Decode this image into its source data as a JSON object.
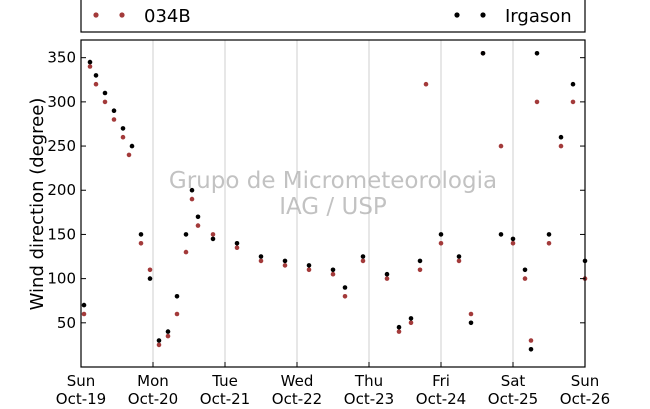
{
  "chart_data": {
    "type": "scatter",
    "title": "",
    "xlabel": "",
    "ylabel": "Wind direction (degree)",
    "ylim": [
      0,
      370
    ],
    "yticks": [
      50,
      100,
      150,
      200,
      250,
      300,
      350
    ],
    "xlim": [
      "2014-10-19",
      "2014-10-26"
    ],
    "xticks": [
      {
        "day": "Sun",
        "date": "Oct-19"
      },
      {
        "day": "Mon",
        "date": "Oct-20"
      },
      {
        "day": "Tue",
        "date": "Oct-21"
      },
      {
        "day": "Wed",
        "date": "Oct-22"
      },
      {
        "day": "Thu",
        "date": "Oct-23"
      },
      {
        "day": "Fri",
        "date": "Oct-24"
      },
      {
        "day": "Sat",
        "date": "Oct-25"
      },
      {
        "day": "Sun",
        "date": "Oct-26"
      }
    ],
    "grid": "vertical",
    "legend_position": "top",
    "watermark": [
      "Grupo de Micrometeorologia",
      "IAG / USP"
    ],
    "series": [
      {
        "name": "034B",
        "color": "#a33a3a",
        "values": [
          [
            "2014-10-19 01:00",
            60
          ],
          [
            "2014-10-19 03:00",
            340
          ],
          [
            "2014-10-19 05:00",
            320
          ],
          [
            "2014-10-19 08:00",
            300
          ],
          [
            "2014-10-19 11:00",
            280
          ],
          [
            "2014-10-19 14:00",
            260
          ],
          [
            "2014-10-19 16:00",
            240
          ],
          [
            "2014-10-19 20:00",
            140
          ],
          [
            "2014-10-19 23:00",
            110
          ],
          [
            "2014-10-20 02:00",
            25
          ],
          [
            "2014-10-20 05:00",
            35
          ],
          [
            "2014-10-20 08:00",
            60
          ],
          [
            "2014-10-20 11:00",
            130
          ],
          [
            "2014-10-20 13:00",
            190
          ],
          [
            "2014-10-20 15:00",
            160
          ],
          [
            "2014-10-20 20:00",
            150
          ],
          [
            "2014-10-21 04:00",
            135
          ],
          [
            "2014-10-21 12:00",
            120
          ],
          [
            "2014-10-21 20:00",
            115
          ],
          [
            "2014-10-22 04:00",
            110
          ],
          [
            "2014-10-22 12:00",
            105
          ],
          [
            "2014-10-22 16:00",
            80
          ],
          [
            "2014-10-22 22:00",
            120
          ],
          [
            "2014-10-23 06:00",
            100
          ],
          [
            "2014-10-23 10:00",
            40
          ],
          [
            "2014-10-23 14:00",
            50
          ],
          [
            "2014-10-23 17:00",
            110
          ],
          [
            "2014-10-23 19:00",
            320
          ],
          [
            "2014-10-24 00:00",
            140
          ],
          [
            "2014-10-24 06:00",
            120
          ],
          [
            "2014-10-24 10:00",
            60
          ],
          [
            "2014-10-24 14:00",
            355
          ],
          [
            "2014-10-24 20:00",
            250
          ],
          [
            "2014-10-25 00:00",
            140
          ],
          [
            "2014-10-25 04:00",
            100
          ],
          [
            "2014-10-25 06:00",
            30
          ],
          [
            "2014-10-25 08:00",
            300
          ],
          [
            "2014-10-25 12:00",
            140
          ],
          [
            "2014-10-25 16:00",
            250
          ],
          [
            "2014-10-25 20:00",
            300
          ],
          [
            "2014-10-26 00:00",
            100
          ]
        ]
      },
      {
        "name": "Irgason",
        "color": "#000000",
        "values": [
          [
            "2014-10-19 01:00",
            70
          ],
          [
            "2014-10-19 03:00",
            345
          ],
          [
            "2014-10-19 05:00",
            330
          ],
          [
            "2014-10-19 08:00",
            310
          ],
          [
            "2014-10-19 11:00",
            290
          ],
          [
            "2014-10-19 14:00",
            270
          ],
          [
            "2014-10-19 17:00",
            250
          ],
          [
            "2014-10-19 20:00",
            150
          ],
          [
            "2014-10-19 23:00",
            100
          ],
          [
            "2014-10-20 02:00",
            30
          ],
          [
            "2014-10-20 05:00",
            40
          ],
          [
            "2014-10-20 08:00",
            80
          ],
          [
            "2014-10-20 11:00",
            150
          ],
          [
            "2014-10-20 13:00",
            200
          ],
          [
            "2014-10-20 15:00",
            170
          ],
          [
            "2014-10-20 20:00",
            145
          ],
          [
            "2014-10-21 04:00",
            140
          ],
          [
            "2014-10-21 12:00",
            125
          ],
          [
            "2014-10-21 20:00",
            120
          ],
          [
            "2014-10-22 04:00",
            115
          ],
          [
            "2014-10-22 12:00",
            110
          ],
          [
            "2014-10-22 16:00",
            90
          ],
          [
            "2014-10-22 22:00",
            125
          ],
          [
            "2014-10-23 06:00",
            105
          ],
          [
            "2014-10-23 10:00",
            45
          ],
          [
            "2014-10-23 14:00",
            55
          ],
          [
            "2014-10-23 17:00",
            120
          ],
          [
            "2014-10-24 00:00",
            150
          ],
          [
            "2014-10-24 06:00",
            125
          ],
          [
            "2014-10-24 10:00",
            50
          ],
          [
            "2014-10-24 14:00",
            355
          ],
          [
            "2014-10-24 20:00",
            150
          ],
          [
            "2014-10-25 00:00",
            145
          ],
          [
            "2014-10-25 04:00",
            110
          ],
          [
            "2014-10-25 06:00",
            20
          ],
          [
            "2014-10-25 08:00",
            355
          ],
          [
            "2014-10-25 12:00",
            150
          ],
          [
            "2014-10-25 16:00",
            260
          ],
          [
            "2014-10-25 20:00",
            320
          ],
          [
            "2014-10-26 00:00",
            120
          ]
        ]
      }
    ]
  }
}
